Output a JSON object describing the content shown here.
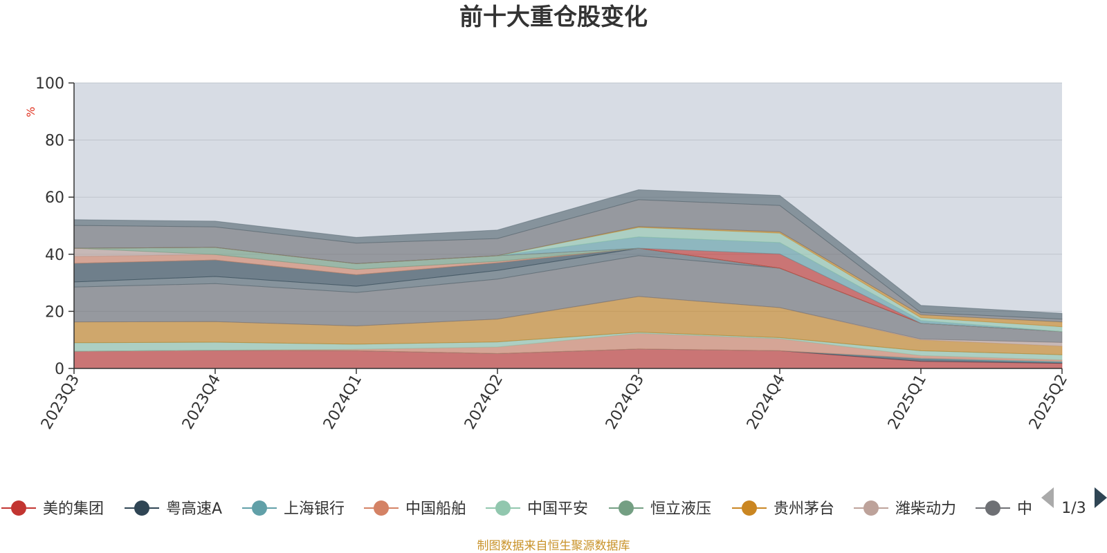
{
  "chart_data": {
    "type": "area",
    "stacked": true,
    "title": "前十大重仓股变化",
    "y_unit": "%",
    "ylim": [
      0,
      100
    ],
    "y_ticks": [
      0,
      20,
      40,
      60,
      80,
      100
    ],
    "grid": true,
    "categories": [
      "2023Q3",
      "2023Q4",
      "2024Q1",
      "2024Q2",
      "2024Q3",
      "2024Q4",
      "2025Q1",
      "2025Q2"
    ],
    "series": [
      {
        "name": "美的集团",
        "color": "#c23531",
        "values": [
          6.0,
          6.4,
          6.2,
          5.2,
          6.8,
          6.2,
          2.5,
          1.8
        ]
      },
      {
        "name": "粤高速A",
        "color": "#2f4554",
        "values": [
          0,
          0,
          0,
          0,
          0,
          0,
          0.8,
          0.3
        ]
      },
      {
        "name": "上海银行",
        "color": "#61a0a8",
        "values": [
          0,
          0,
          0,
          0,
          0,
          0,
          0.3,
          0.4
        ]
      },
      {
        "name": "中国船舶",
        "color": "#d48265",
        "values": [
          0,
          0,
          0.5,
          2.3,
          5.5,
          4.2,
          0.9,
          0.5
        ]
      },
      {
        "name": "中国平安",
        "color": "#91c7ae",
        "values": [
          3.0,
          2.8,
          1.8,
          1.8,
          0.4,
          0.4,
          1.7,
          1.8
        ]
      },
      {
        "name": "恒立液压",
        "color": "#749f83",
        "values": [
          0,
          0,
          0,
          0,
          0,
          0,
          0,
          0
        ]
      },
      {
        "name": "贵州茅台",
        "color": "#ca8622",
        "values": [
          7.3,
          7.2,
          6.4,
          8.0,
          12.5,
          10.5,
          3.8,
          3.0
        ]
      },
      {
        "name": "潍柴动力",
        "color": "#bda29a",
        "values": [
          0,
          0,
          0,
          0,
          0,
          0,
          0.3,
          1.3
        ]
      },
      {
        "name": "中",
        "color": "#6e7074",
        "values": [
          12.2,
          13.3,
          11.7,
          14.0,
          14.3,
          13.8,
          5.5,
          3.8
        ]
      },
      {
        "name": "",
        "color": "#546570",
        "values": [
          1.8,
          2.5,
          2.2,
          3.0,
          2.6,
          0,
          0,
          0
        ]
      },
      {
        "name": "",
        "color": "#2f4554",
        "values": [
          6.5,
          5.8,
          4.0,
          2.7,
          0,
          0,
          0,
          0
        ]
      },
      {
        "name": "",
        "color": "#61a0a8",
        "values": [
          0,
          0,
          0,
          0,
          0,
          0,
          0,
          0
        ]
      },
      {
        "name": "",
        "color": "#d48265",
        "values": [
          2.4,
          1.9,
          1.9,
          0.5,
          0,
          0,
          0,
          0
        ]
      },
      {
        "name": "",
        "color": "#bda29a",
        "values": [
          2.9,
          0,
          0,
          0,
          0,
          0,
          0,
          0
        ]
      },
      {
        "name": "",
        "color": "#749f83",
        "values": [
          0,
          2.5,
          2.0,
          2.0,
          0,
          0,
          0,
          0
        ]
      },
      {
        "name": "",
        "color": "#c23531",
        "values": [
          0,
          0,
          0,
          0,
          0,
          5.0,
          0,
          0
        ]
      },
      {
        "name": "",
        "color": "#61a0a8",
        "values": [
          0,
          0,
          0,
          0,
          4.0,
          4.0,
          1.0,
          0
        ]
      },
      {
        "name": "",
        "color": "#91c7ae",
        "values": [
          0,
          0,
          0,
          0,
          3.3,
          3.3,
          1.0,
          1.7
        ]
      },
      {
        "name": "",
        "color": "#ca8622",
        "values": [
          0,
          0,
          0,
          0,
          0.3,
          0.5,
          1.0,
          1.7
        ]
      },
      {
        "name": "",
        "color": "#6e7074",
        "values": [
          8.0,
          7.2,
          7.2,
          6.0,
          9.4,
          9.2,
          0.8,
          1.0
        ]
      },
      {
        "name": "",
        "color": "#546570",
        "values": [
          2.0,
          2.0,
          2.0,
          3.0,
          3.5,
          3.5,
          2.5,
          2.0
        ]
      }
    ]
  },
  "legend": {
    "items": [
      {
        "label": "美的集团",
        "color": "#c23531"
      },
      {
        "label": "粤高速A",
        "color": "#2f4554"
      },
      {
        "label": "上海银行",
        "color": "#61a0a8"
      },
      {
        "label": "中国船舶",
        "color": "#d48265"
      },
      {
        "label": "中国平安",
        "color": "#91c7ae"
      },
      {
        "label": "恒立液压",
        "color": "#749f83"
      },
      {
        "label": "贵州茅台",
        "color": "#ca8622"
      },
      {
        "label": "潍柴动力",
        "color": "#bda29a"
      },
      {
        "label": "中",
        "color": "#6e7074"
      }
    ],
    "pager": "1/3",
    "prev_icon": "triangle-left-icon",
    "next_icon": "triangle-right-icon"
  },
  "footer": {
    "source": "制图数据来自恒生聚源数据库"
  }
}
